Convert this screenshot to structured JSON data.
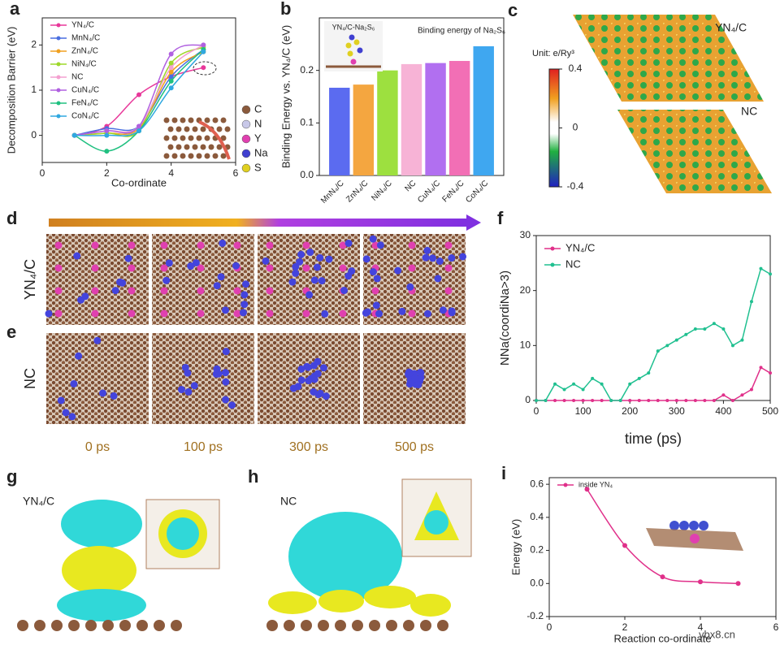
{
  "chart_data": [
    {
      "type": "line",
      "label": "a",
      "xlabel": "Co-ordinate",
      "ylabel": "Decomposition Barrier (eV)",
      "x": [
        1,
        2,
        3,
        4,
        5
      ],
      "xlim": [
        0,
        6
      ],
      "xticks": [
        0,
        2,
        4,
        6
      ],
      "ylim": [
        -0.6,
        2.6
      ],
      "yticks": [
        0,
        1,
        2
      ],
      "markers": true,
      "smooth": true,
      "series": [
        {
          "name": "YN₄/C",
          "color": "#e8389a",
          "values": [
            0,
            0.2,
            0.9,
            1.3,
            1.5
          ]
        },
        {
          "name": "MnN₄/C",
          "color": "#4a6fe0",
          "values": [
            0,
            0.15,
            0.2,
            1.3,
            1.9
          ]
        },
        {
          "name": "ZnN₄/C",
          "color": "#f0a020",
          "values": [
            0,
            0.05,
            0.15,
            1.4,
            1.85
          ]
        },
        {
          "name": "NiN₄/C",
          "color": "#9ed82a",
          "values": [
            0,
            0.05,
            0.1,
            1.6,
            1.95
          ]
        },
        {
          "name": "NC",
          "color": "#f4a0d0",
          "values": [
            0,
            0.1,
            0.2,
            1.5,
            2.0
          ]
        },
        {
          "name": "CuN₄/C",
          "color": "#b060e0",
          "values": [
            0,
            0.1,
            0.2,
            1.8,
            2.0
          ]
        },
        {
          "name": "FeN₄/C",
          "color": "#20c080",
          "values": [
            0,
            -0.35,
            0.1,
            1.2,
            1.9
          ]
        },
        {
          "name": "CoN₄/C",
          "color": "#30a8e0",
          "values": [
            0,
            0,
            0.1,
            1.05,
            1.85
          ]
        }
      ],
      "inset_legend": [
        {
          "name": "C",
          "color": "#8b5a3c"
        },
        {
          "name": "N",
          "color": "#c8c8e8"
        },
        {
          "name": "Y",
          "color": "#e040b0"
        },
        {
          "name": "Na",
          "color": "#4040d0"
        },
        {
          "name": "S",
          "color": "#e0d020"
        }
      ]
    },
    {
      "type": "bar",
      "label": "b",
      "ylabel": "Binding Energy vs. YN₄/C (eV)",
      "inset_title": "YN₄/C-Na₂S₆",
      "annotation": "Binding energy of Na₂S₆",
      "categories": [
        "MnN₄/C",
        "ZnN₄/C",
        "NiN₄/C",
        "NC",
        "CuN₄/C",
        "FeN₄/C",
        "CoN₄/C"
      ],
      "values": [
        0.167,
        0.173,
        0.2,
        0.212,
        0.214,
        0.218,
        0.246
      ],
      "colors": [
        "#5b6bf0",
        "#f4a640",
        "#9de03f",
        "#f7b3d6",
        "#b16ff0",
        "#f26fb5",
        "#3fa7f0"
      ],
      "ylim": [
        0,
        0.3
      ],
      "yticks": [
        {
          "value": 0,
          "label": "0.0"
        },
        0.1,
        0.2
      ]
    },
    {
      "type": "line",
      "label": "f",
      "xlabel": "time (ps)",
      "ylabel": "NNa(coordiNa>3)",
      "x": [
        0,
        20,
        40,
        60,
        80,
        100,
        120,
        140,
        160,
        180,
        200,
        220,
        240,
        260,
        280,
        300,
        320,
        340,
        360,
        380,
        400,
        420,
        440,
        460,
        480,
        500
      ],
      "xlim": [
        0,
        500
      ],
      "xticks": [
        0,
        100,
        200,
        300,
        400,
        500
      ],
      "ylim": [
        0,
        30
      ],
      "yticks": [
        0,
        10,
        20,
        30
      ],
      "markers": true,
      "smooth": false,
      "series": [
        {
          "name": "YN₄/C",
          "color": "#e0308a",
          "values": [
            0,
            0,
            0,
            0,
            0,
            0,
            0,
            0,
            0,
            0,
            0,
            0,
            0,
            0,
            0,
            0,
            0,
            0,
            0,
            0,
            1,
            0,
            1,
            2,
            6,
            5
          ]
        },
        {
          "name": "NC",
          "color": "#20c090",
          "values": [
            0,
            0,
            3,
            2,
            3,
            2,
            4,
            3,
            0,
            0,
            3,
            4,
            5,
            9,
            10,
            11,
            12,
            13,
            13,
            14,
            13,
            10,
            11,
            18,
            24,
            23
          ]
        }
      ]
    },
    {
      "type": "line",
      "label": "i",
      "xlabel": "Reaction co-ordinate",
      "ylabel": "Energy (eV)",
      "x": [
        1,
        2,
        3,
        4,
        5
      ],
      "xlim": [
        0,
        6
      ],
      "xticks": [
        0,
        2,
        4,
        6
      ],
      "ylim": [
        -0.2,
        0.64
      ],
      "yticks": [
        -0.2,
        {
          "value": 0,
          "label": "0.0"
        },
        0.2,
        0.4,
        0.6
      ],
      "markers": true,
      "smooth": true,
      "series": [
        {
          "name": "inside YN₄",
          "color": "#e0308a",
          "values": [
            0.57,
            0.23,
            0.04,
            0.01,
            0
          ]
        }
      ]
    }
  ],
  "panel_c": {
    "label": "c",
    "top": "YN₄/C",
    "bottom": "NC",
    "unit": "Unit: e/Ry³",
    "range": [
      -0.4,
      0.4
    ],
    "ticks": [
      0.4,
      0,
      -0.4
    ]
  },
  "panel_de": {
    "d": "d",
    "e": "e",
    "rows": [
      "YN₄/C",
      "NC"
    ],
    "times": [
      "0 ps",
      "100 ps",
      "300 ps",
      "500 ps"
    ]
  },
  "panel_g": {
    "label": "g",
    "text": "YN₄/C"
  },
  "panel_h": {
    "label": "h",
    "text": "NC"
  },
  "watermark": "ybx8.cn"
}
